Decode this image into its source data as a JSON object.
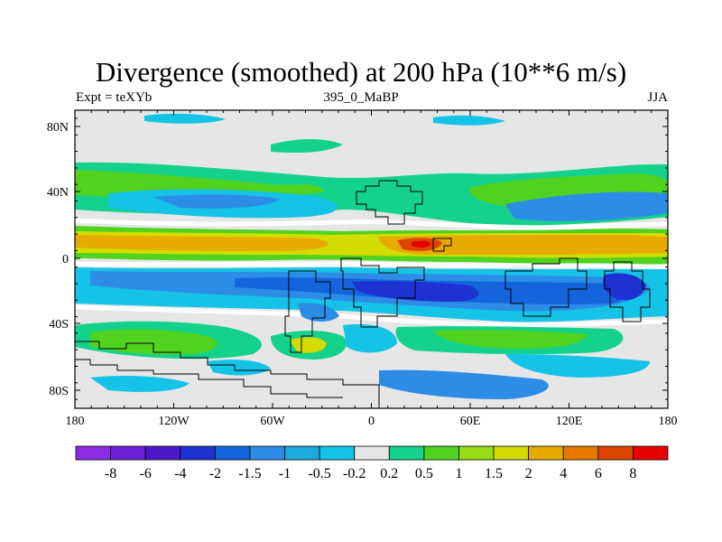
{
  "title": "Divergence (smoothed) at 200 hPa (10**6 m/s)",
  "subtitle_left": "Expt = teXYb",
  "subtitle_center": "395_0_MaBP",
  "subtitle_right": "JJA",
  "lat_ticks": [
    "80N",
    "40N",
    "0",
    "40S",
    "80S"
  ],
  "lon_ticks": [
    "180",
    "120W",
    "60W",
    "0",
    "60E",
    "120E",
    "180"
  ],
  "colorbar": {
    "colors": [
      "#8b2be2",
      "#6a1fd6",
      "#4b19c8",
      "#1e32d2",
      "#1464dc",
      "#2d8ce6",
      "#1eaadc",
      "#14c3e6",
      "#e6e6e6",
      "#14d28c",
      "#50d21e",
      "#96dc14",
      "#d2dc00",
      "#e6aa00",
      "#e67800",
      "#dc4600",
      "#e60000"
    ],
    "labels": [
      "-8",
      "-6",
      "-4",
      "-2",
      "-1.5",
      "-1",
      "-0.5",
      "-0.2",
      "0.2",
      "0.5",
      "1",
      "1.5",
      "2",
      "4",
      "6",
      "8"
    ]
  },
  "colors": {
    "bg": "#e6e6e6",
    "white_band": "#ffffff",
    "coast": "#000000"
  }
}
